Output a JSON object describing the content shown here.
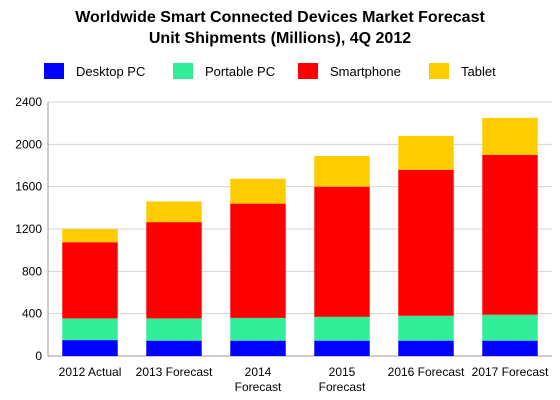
{
  "chart_data": {
    "type": "bar",
    "stacked": true,
    "title": "Worldwide Smart Connected Devices Market Forecast",
    "subtitle": "Unit Shipments (Millions), 4Q 2012",
    "categories": [
      "2012 Actual",
      "2013 Forecast",
      "2014 Forecast",
      "2015 Forecast",
      "2016 Forecast",
      "2017 Forecast"
    ],
    "series": [
      {
        "name": "Desktop PC",
        "color": "#0000ff",
        "values": [
          150,
          145,
          145,
          145,
          145,
          145
        ]
      },
      {
        "name": "Portable PC",
        "color": "#33ee99",
        "values": [
          205,
          210,
          215,
          225,
          235,
          245
        ]
      },
      {
        "name": "Smartphone",
        "color": "#ff0000",
        "values": [
          720,
          910,
          1080,
          1230,
          1380,
          1510
        ]
      },
      {
        "name": "Tablet",
        "color": "#ffcc00",
        "values": [
          125,
          195,
          235,
          290,
          320,
          350
        ]
      }
    ],
    "ylim": [
      0,
      2400
    ],
    "yticks": [
      0,
      400,
      800,
      1200,
      1600,
      2000,
      2400
    ],
    "grid": true,
    "legend": "top",
    "xlabel": "",
    "ylabel": ""
  }
}
